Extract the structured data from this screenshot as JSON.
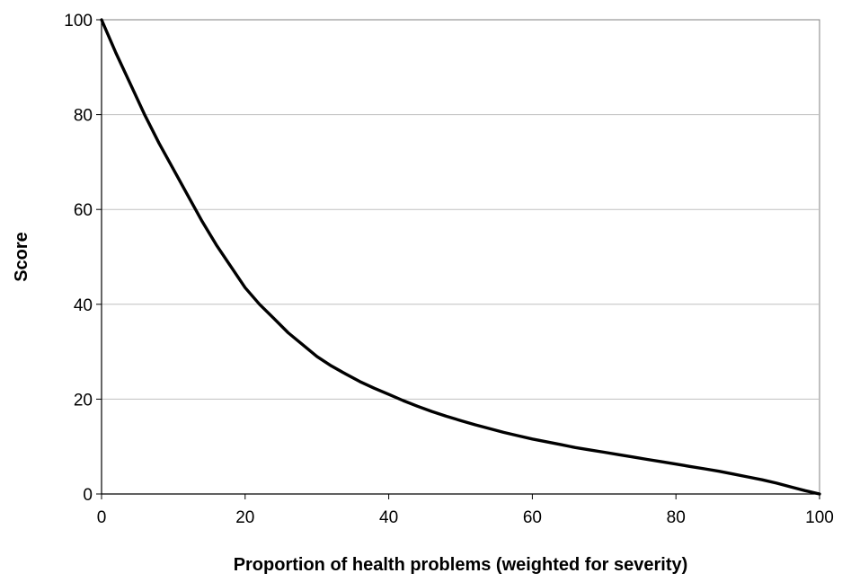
{
  "chart_data": {
    "type": "line",
    "title": "",
    "xlabel": "Proportion of health problems (weighted for severity)",
    "ylabel": "Score",
    "xlim": [
      0,
      100
    ],
    "ylim": [
      0,
      100
    ],
    "x_ticks": [
      "0",
      "20",
      "40",
      "60",
      "80",
      "100"
    ],
    "y_ticks": [
      "0",
      "20",
      "40",
      "60",
      "80",
      "100"
    ],
    "grid": {
      "horizontal": true,
      "vertical": false
    },
    "legend": "none",
    "colors": {
      "line": "#000000",
      "grid": "#c0c0c0",
      "axis": "#000000",
      "frame": "#808080"
    },
    "series": [
      {
        "x": [
          0,
          2,
          4,
          6,
          8,
          10,
          12,
          14,
          16,
          18,
          20,
          22,
          24,
          26,
          28,
          30,
          32,
          34,
          36,
          38,
          40,
          42,
          44,
          46,
          48,
          50,
          52,
          54,
          56,
          58,
          60,
          62,
          64,
          66,
          68,
          70,
          72,
          74,
          76,
          78,
          80,
          82,
          84,
          86,
          88,
          90,
          92,
          94,
          96,
          98,
          100
        ],
        "y": [
          100,
          93,
          86.5,
          80,
          74,
          68.5,
          63,
          57.5,
          52.5,
          48,
          43.5,
          40,
          37,
          34,
          31.5,
          29,
          27,
          25.3,
          23.7,
          22.3,
          21,
          19.7,
          18.5,
          17.4,
          16.4,
          15.5,
          14.6,
          13.8,
          13,
          12.3,
          11.6,
          11,
          10.4,
          9.8,
          9.3,
          8.8,
          8.3,
          7.8,
          7.3,
          6.8,
          6.3,
          5.8,
          5.3,
          4.8,
          4.2,
          3.6,
          3.0,
          2.3,
          1.5,
          0.7,
          0
        ]
      }
    ]
  }
}
